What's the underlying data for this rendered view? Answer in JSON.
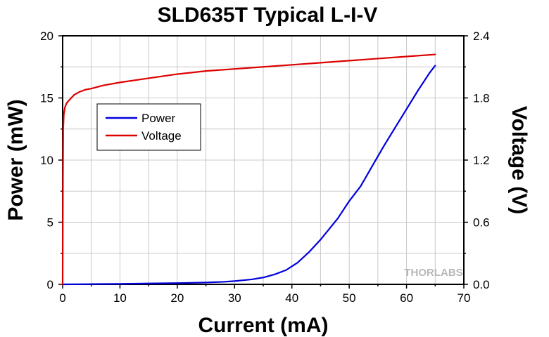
{
  "chart_data": {
    "type": "line",
    "title": "SLD635T Typical L-I-V",
    "xlabel": "Current (mA)",
    "ylabel": "Power (mW)",
    "y2label": "Voltage (V)",
    "xlim": [
      0,
      70
    ],
    "ylim": [
      0,
      20
    ],
    "y2lim": [
      0,
      2.4
    ],
    "x_ticks": [
      "0",
      "10",
      "20",
      "30",
      "40",
      "50",
      "60",
      "70"
    ],
    "y_ticks": [
      "0",
      "5",
      "10",
      "15",
      "20"
    ],
    "y2_ticks": [
      "0.0",
      "0.6",
      "1.2",
      "1.8",
      "2.4"
    ],
    "grid": true,
    "legend_position": "upper-left",
    "watermark": "THORLABS",
    "series": [
      {
        "name": "Power",
        "axis": "left",
        "color": "#0000dd",
        "x": [
          0,
          5,
          10,
          15,
          20,
          25,
          28,
          30,
          33,
          35,
          37,
          39,
          41,
          43,
          45,
          48,
          50,
          52,
          54,
          56,
          58,
          60,
          62,
          64,
          65
        ],
        "y": [
          0.0,
          0.02,
          0.04,
          0.07,
          0.1,
          0.15,
          0.2,
          0.26,
          0.4,
          0.55,
          0.8,
          1.15,
          1.75,
          2.6,
          3.6,
          5.3,
          6.7,
          7.9,
          9.5,
          11.1,
          12.6,
          14.1,
          15.6,
          17.0,
          17.6
        ]
      },
      {
        "name": "Voltage",
        "axis": "right",
        "color": "#dd0000",
        "x": [
          0,
          0.05,
          0.1,
          0.2,
          0.4,
          0.7,
          1,
          1.5,
          2,
          3,
          4,
          5,
          7,
          10,
          15,
          20,
          25,
          30,
          35,
          40,
          45,
          50,
          55,
          60,
          65
        ],
        "y": [
          0.0,
          1.0,
          1.5,
          1.64,
          1.71,
          1.75,
          1.77,
          1.8,
          1.83,
          1.86,
          1.88,
          1.89,
          1.92,
          1.95,
          1.99,
          2.03,
          2.06,
          2.08,
          2.1,
          2.12,
          2.14,
          2.16,
          2.18,
          2.2,
          2.22
        ]
      }
    ]
  }
}
